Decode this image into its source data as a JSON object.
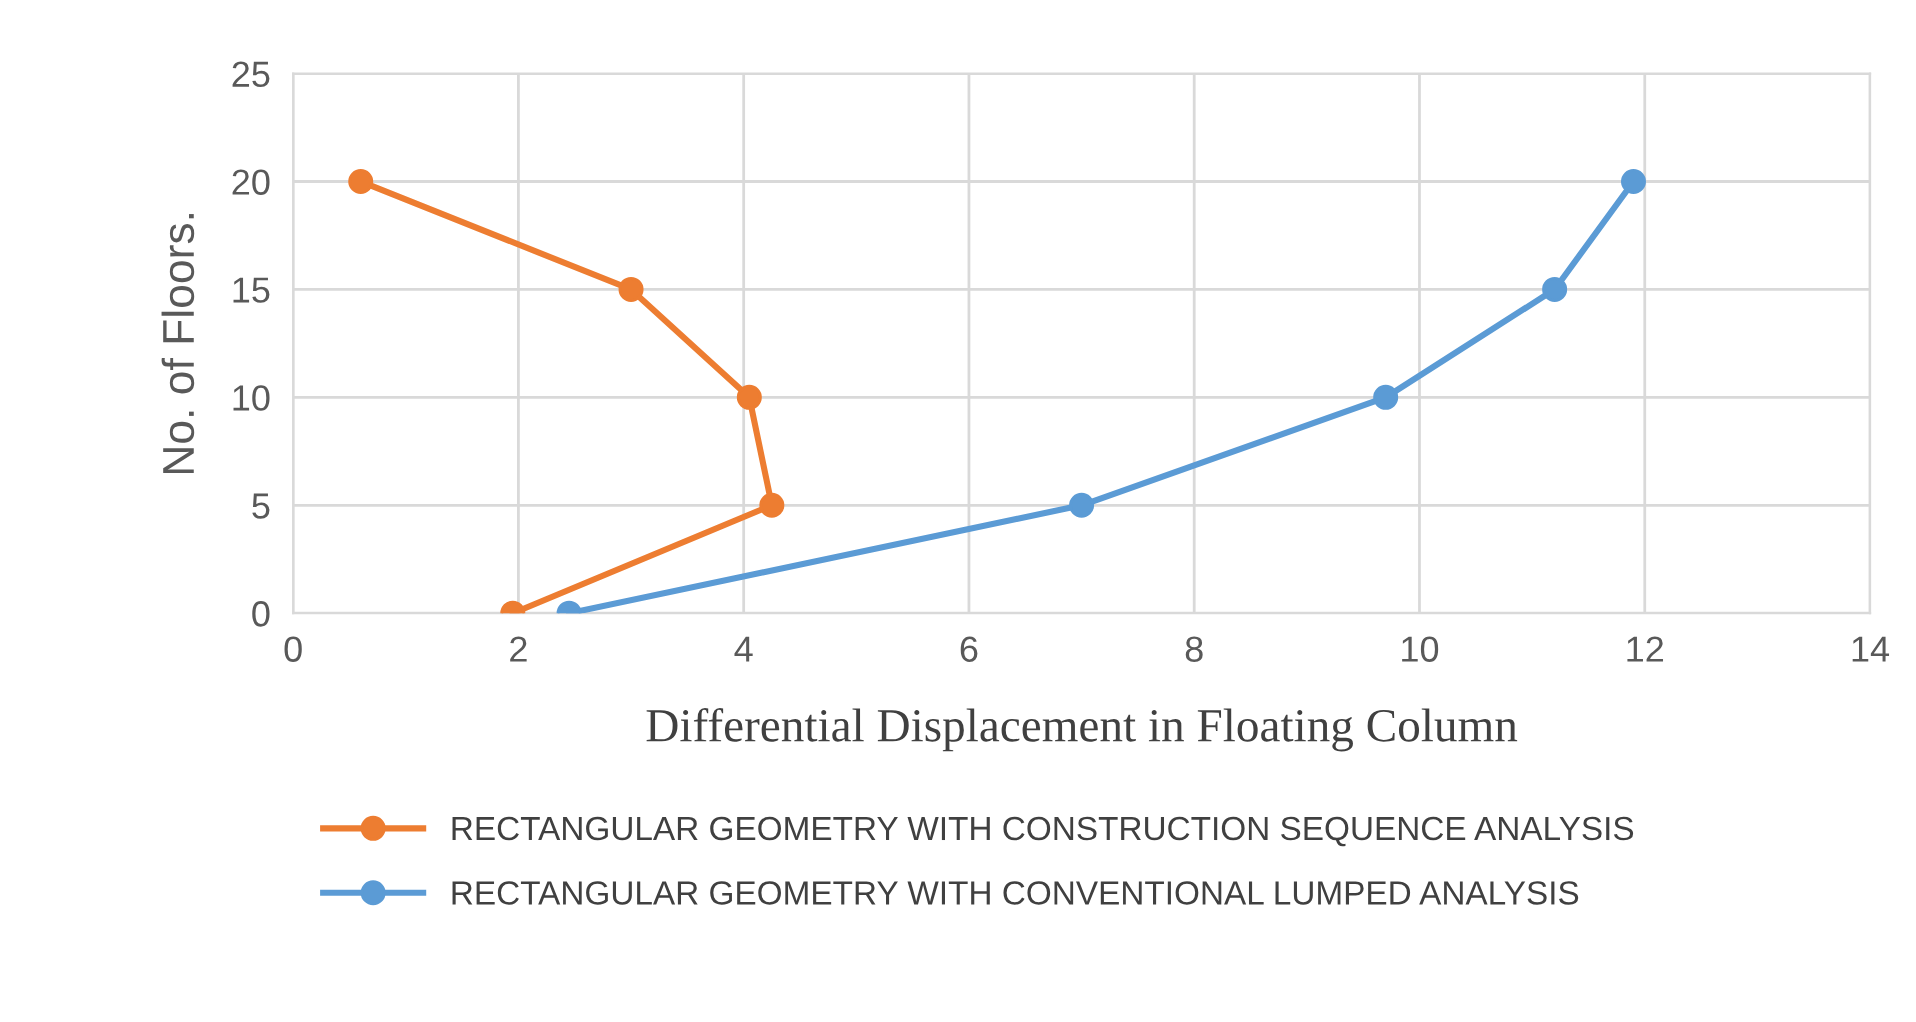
{
  "chart_data": {
    "type": "line",
    "xlabel": "Differential Displacement in Floating Column",
    "ylabel": "No. of Floors.",
    "xlim": [
      0,
      14
    ],
    "xticks": [
      0,
      2,
      4,
      6,
      8,
      10,
      12,
      14
    ],
    "ylim": [
      0,
      25
    ],
    "yticks": [
      0,
      5,
      10,
      15,
      20,
      25
    ],
    "grid": true,
    "legend": "bottom",
    "marker": "circle",
    "line_style": "solid",
    "series": [
      {
        "name": "RECTANGULAR GEOMETRY WITH CONSTRUCTION SEQUENCE ANALYSIS",
        "color": "#ed7d31",
        "x": [
          1.95,
          4.25,
          4.05,
          3.0,
          0.6
        ],
        "values": [
          0,
          5,
          10,
          15,
          20
        ]
      },
      {
        "name": "RECTANGULAR GEOMETRY WITH CONVENTIONAL LUMPED ANALYSIS",
        "color": "#5b9bd5",
        "x": [
          2.45,
          7.0,
          9.7,
          11.2,
          11.9
        ],
        "values": [
          0,
          5,
          10,
          15,
          20
        ]
      }
    ]
  }
}
